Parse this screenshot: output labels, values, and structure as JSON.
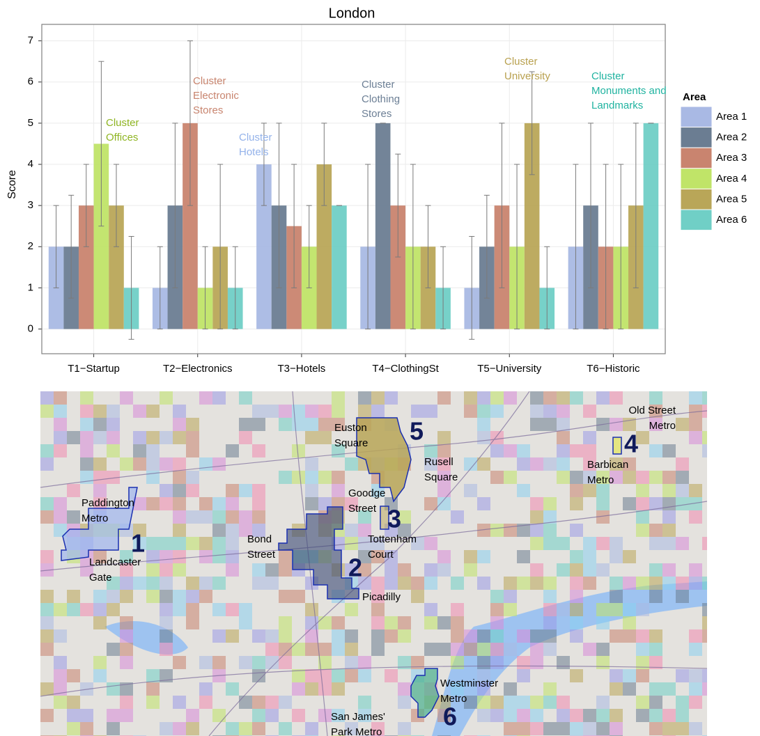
{
  "chart_data": {
    "type": "bar",
    "title": "London",
    "y_label": "Score",
    "categories": [
      "T1−Startup",
      "T2−Electronics",
      "T3−Hotels",
      "T4−ClothingSt",
      "T5−University",
      "T6−Historic"
    ],
    "ylim": [
      -0.6,
      7.4
    ],
    "yticks": [
      0,
      1,
      2,
      3,
      4,
      5,
      6,
      7
    ],
    "grid": true,
    "legend_title": "Area",
    "legend": "right",
    "series": [
      {
        "name": "Area 1",
        "color": "#a9b9e4",
        "values": [
          2,
          1,
          4,
          2,
          1,
          2
        ],
        "lower": [
          1,
          0,
          3,
          0,
          -0.25,
          0
        ],
        "upper": [
          3,
          2,
          5,
          4,
          2.25,
          4
        ]
      },
      {
        "name": "Area 2",
        "color": "#6b7d92",
        "values": [
          2,
          3,
          3,
          5,
          2,
          3
        ],
        "lower": [
          0.75,
          1,
          1,
          5,
          0.75,
          1
        ],
        "upper": [
          3.25,
          5,
          5,
          5,
          3.25,
          5
        ]
      },
      {
        "name": "Area 3",
        "color": "#c9846f",
        "values": [
          3,
          5,
          2.5,
          3,
          3,
          2
        ],
        "lower": [
          2,
          3,
          1,
          1.75,
          1,
          0
        ],
        "upper": [
          4,
          7,
          4,
          4.25,
          5,
          4
        ]
      },
      {
        "name": "Area 4",
        "color": "#c0e468",
        "values": [
          4.5,
          1,
          2,
          2,
          2,
          2
        ],
        "lower": [
          2.5,
          0,
          1,
          0,
          0,
          0
        ],
        "upper": [
          6.5,
          2,
          3,
          4,
          4,
          4
        ]
      },
      {
        "name": "Area 5",
        "color": "#b9a658",
        "values": [
          3,
          2,
          4,
          2,
          5,
          3
        ],
        "lower": [
          2,
          0,
          3,
          1,
          3.75,
          1
        ],
        "upper": [
          4,
          4,
          5,
          3,
          6.25,
          5
        ]
      },
      {
        "name": "Area 6",
        "color": "#70cfc6",
        "values": [
          1,
          1,
          3,
          1,
          1,
          5
        ],
        "lower": [
          -0.25,
          0,
          3,
          0,
          0,
          5
        ],
        "upper": [
          2.25,
          2,
          3,
          2,
          2,
          5
        ]
      }
    ],
    "annotations": [
      {
        "text": [
          "Cluster",
          "Offices"
        ],
        "color": "#8fb523"
      },
      {
        "text": [
          "Cluster",
          "Electronic",
          "Stores"
        ],
        "color": "#c8846e"
      },
      {
        "text": [
          "Cluster",
          "Hotels"
        ],
        "color": "#93b2ea"
      },
      {
        "text": [
          "Cluster",
          "Clothing",
          "Stores"
        ],
        "color": "#6c7f95"
      },
      {
        "text": [
          "Cluster",
          "University"
        ],
        "color": "#b9a14f"
      },
      {
        "text": [
          "Cluster",
          "Monuments and",
          "Landmarks"
        ],
        "color": "#20b3a0"
      }
    ]
  },
  "map": {
    "places": [
      {
        "text": [
          "Paddington",
          "Metro"
        ]
      },
      {
        "text": [
          "Landcaster",
          "Gate"
        ]
      },
      {
        "text": [
          "Bond",
          "Street"
        ]
      },
      {
        "text": [
          "Tottenham",
          "Court"
        ]
      },
      {
        "text": [
          "Picadilly"
        ]
      },
      {
        "text": [
          "Euston",
          "Square"
        ]
      },
      {
        "text": [
          "Rusell",
          "Square"
        ]
      },
      {
        "text": [
          "Goodge",
          "Street"
        ]
      },
      {
        "text": [
          "Old Street",
          "Metro"
        ]
      },
      {
        "text": [
          "Barbican",
          "Metro"
        ]
      },
      {
        "text": [
          "Westminster",
          "Metro"
        ]
      },
      {
        "text": [
          "San James'",
          "Park Metro"
        ]
      }
    ],
    "area_numbers": [
      "1",
      "2",
      "3",
      "4",
      "5",
      "6"
    ]
  }
}
